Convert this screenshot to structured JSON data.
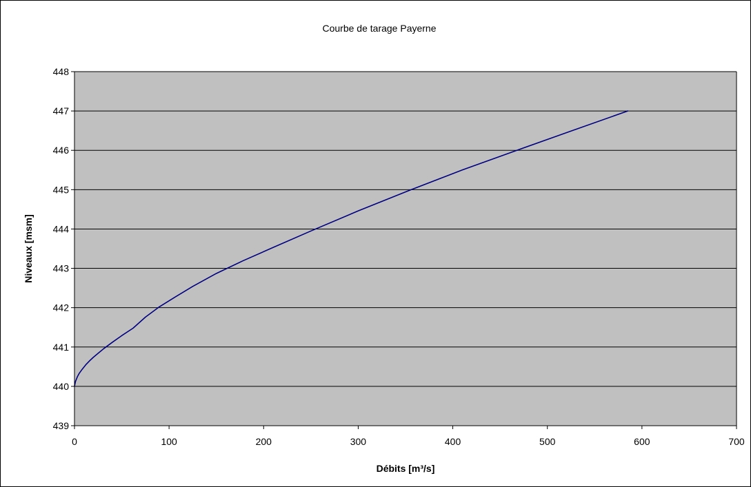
{
  "colors": {
    "plot_background": "#c0c0c0",
    "gridline": "#000000",
    "series_line": "#000080",
    "frame_border": "#000000"
  },
  "chart_data": {
    "type": "line",
    "title": "Courbe de tarage Payerne",
    "xlabel": "Débits [m³/s]",
    "ylabel": "Niveaux [msm]",
    "xlim": [
      0,
      700
    ],
    "ylim": [
      439,
      448
    ],
    "xticks": [
      "0",
      "100",
      "200",
      "300",
      "400",
      "500",
      "600",
      "700"
    ],
    "yticks": [
      "439",
      "440",
      "441",
      "442",
      "443",
      "444",
      "445",
      "446",
      "447",
      "448"
    ],
    "grid": "horizontal",
    "legend": "none",
    "series": [
      {
        "x": [
          0,
          1,
          3,
          5,
          8,
          12,
          16,
          20,
          25,
          31,
          40,
          50,
          62,
          75,
          89,
          105,
          125,
          150,
          178,
          210,
          250,
          300,
          355,
          410,
          470,
          525,
          585
        ],
        "y": [
          440.0,
          440.12,
          440.24,
          440.33,
          440.43,
          440.55,
          440.65,
          440.74,
          440.84,
          440.96,
          441.12,
          441.29,
          441.48,
          441.76,
          442.01,
          442.25,
          442.54,
          442.87,
          443.19,
          443.53,
          443.95,
          444.46,
          444.99,
          445.5,
          446.02,
          446.49,
          447.0
        ]
      }
    ]
  }
}
